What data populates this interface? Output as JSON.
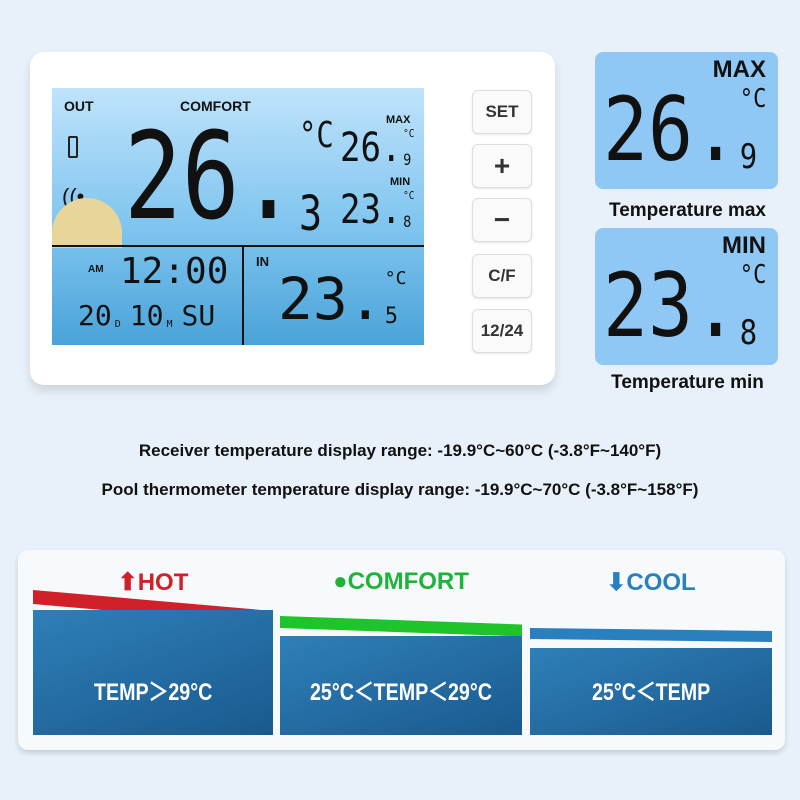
{
  "device": {
    "screen": {
      "out_label": "OUT",
      "comfort_label": "COMFORT",
      "main_temp": "26.",
      "main_temp_decimal": "3",
      "unit": "°C",
      "max_label": "MAX",
      "max_temp": "26.",
      "max_decimal": "9",
      "min_label": "MIN",
      "min_temp": "23.",
      "min_decimal": "8",
      "am_label": "AM",
      "time": "12:00",
      "date": "20",
      "date_d": "D",
      "month": "10",
      "month_m": "M",
      "weekday": "SU",
      "in_label": "IN",
      "in_temp": "23.",
      "in_decimal": "5"
    },
    "buttons": [
      "SET",
      "+",
      "−",
      "C/F",
      "12/24"
    ]
  },
  "max_panel": {
    "label": "MAX",
    "temp": "26.",
    "decimal": "9",
    "unit": "°C",
    "caption": "Temperature max"
  },
  "min_panel": {
    "label": "MIN",
    "temp": "23.",
    "decimal": "8",
    "unit": "°C",
    "caption": "Temperature min"
  },
  "ranges": [
    "Receiver temperature display range: -19.9°C~60°C (-3.8°F~140°F)",
    "Pool thermometer temperature display range: -19.9°C~70°C (-3.8°F~158°F)"
  ],
  "zones": [
    {
      "icon": "arrow-up",
      "title": "HOT",
      "text": "TEMP＞29°C",
      "color": "#d0202a"
    },
    {
      "icon": "dot",
      "title": "COMFORT",
      "text": "25°C＜TEMP＜29°C",
      "color": "#1fb33a"
    },
    {
      "icon": "arrow-down",
      "title": "COOL",
      "text": "25°C＜TEMP",
      "color": "#2a7fbf"
    }
  ]
}
